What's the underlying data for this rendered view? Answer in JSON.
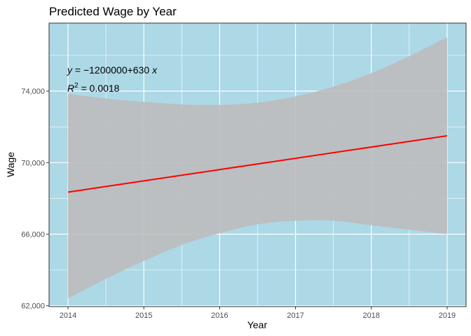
{
  "chart_data": {
    "type": "line",
    "title": "Predicted Wage by Year",
    "xlabel": "Year",
    "ylabel": "Wage",
    "x_ticks": [
      2014,
      2015,
      2016,
      2017,
      2018,
      2019
    ],
    "x_tick_labels": [
      "2014",
      "2015",
      "2016",
      "2017",
      "2018",
      "2019"
    ],
    "y_ticks": [
      62000,
      66000,
      70000,
      74000
    ],
    "y_tick_labels": [
      "62,000",
      "66,000",
      "70,000",
      "74,000"
    ],
    "xlim": [
      2013.75,
      2019.25
    ],
    "ylim": [
      61950,
      77800
    ],
    "grid": true,
    "background": "#add8e6",
    "line_color": "#ff0000",
    "ribbon_color": "#bdbdbd",
    "fit_line": {
      "x": [
        2014,
        2019
      ],
      "y": [
        68350,
        71500
      ]
    },
    "confidence_band": {
      "x": [
        2014,
        2014.5,
        2015,
        2015.5,
        2016,
        2016.5,
        2017,
        2017.5,
        2018,
        2018.5,
        2019
      ],
      "upper": [
        73850,
        73580,
        73400,
        73250,
        73230,
        73350,
        73700,
        74250,
        75000,
        75950,
        77000
      ],
      "lower": [
        62400,
        63500,
        64500,
        65400,
        66050,
        66550,
        66750,
        66750,
        66500,
        66250,
        66000
      ]
    },
    "annotations": {
      "equation_y": "y",
      "equation_rest": " = −1200000+630 ",
      "equation_x": "x",
      "r2_label": "R",
      "r2_sup": "2",
      "r2_value": " = 0.0018"
    }
  }
}
